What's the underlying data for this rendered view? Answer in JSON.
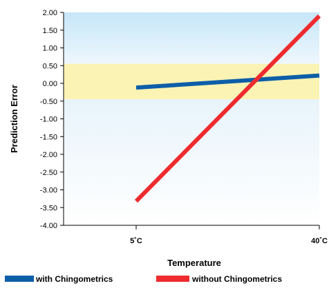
{
  "chart_data": {
    "type": "line",
    "xlabel": "Temperature",
    "ylabel": "Prediction Error",
    "ylim": [
      -4.0,
      2.0
    ],
    "y_ticks": [
      "2.00",
      "1.50",
      "1.00",
      "0.50",
      "0.00",
      "-0.50",
      "-1.00",
      "-1.50",
      "-2.00",
      "-2.50",
      "-3.00",
      "-3.50",
      "-4.00"
    ],
    "x_categories": [
      "5˚C",
      "40˚C"
    ],
    "background_bands": [
      {
        "from": 0.55,
        "to": 2.0,
        "color": "#c6e6f8",
        "fade_to": "#eef7fd"
      },
      {
        "from": -0.45,
        "to": 0.55,
        "color": "#faf3b4"
      },
      {
        "from": -4.0,
        "to": -0.45,
        "color": "#e8f4fb",
        "fade_to": "#ffffff"
      }
    ],
    "series": [
      {
        "name": "with Chingometrics",
        "color": "#0d5ea8",
        "points": [
          [
            0,
            -0.12
          ],
          [
            1,
            0.22
          ]
        ]
      },
      {
        "name": "without Chingometrics",
        "color": "#ee2b2e",
        "points": [
          [
            0,
            -3.32
          ],
          [
            1,
            1.9
          ]
        ]
      }
    ],
    "grid": false,
    "legend_position": "bottom"
  }
}
